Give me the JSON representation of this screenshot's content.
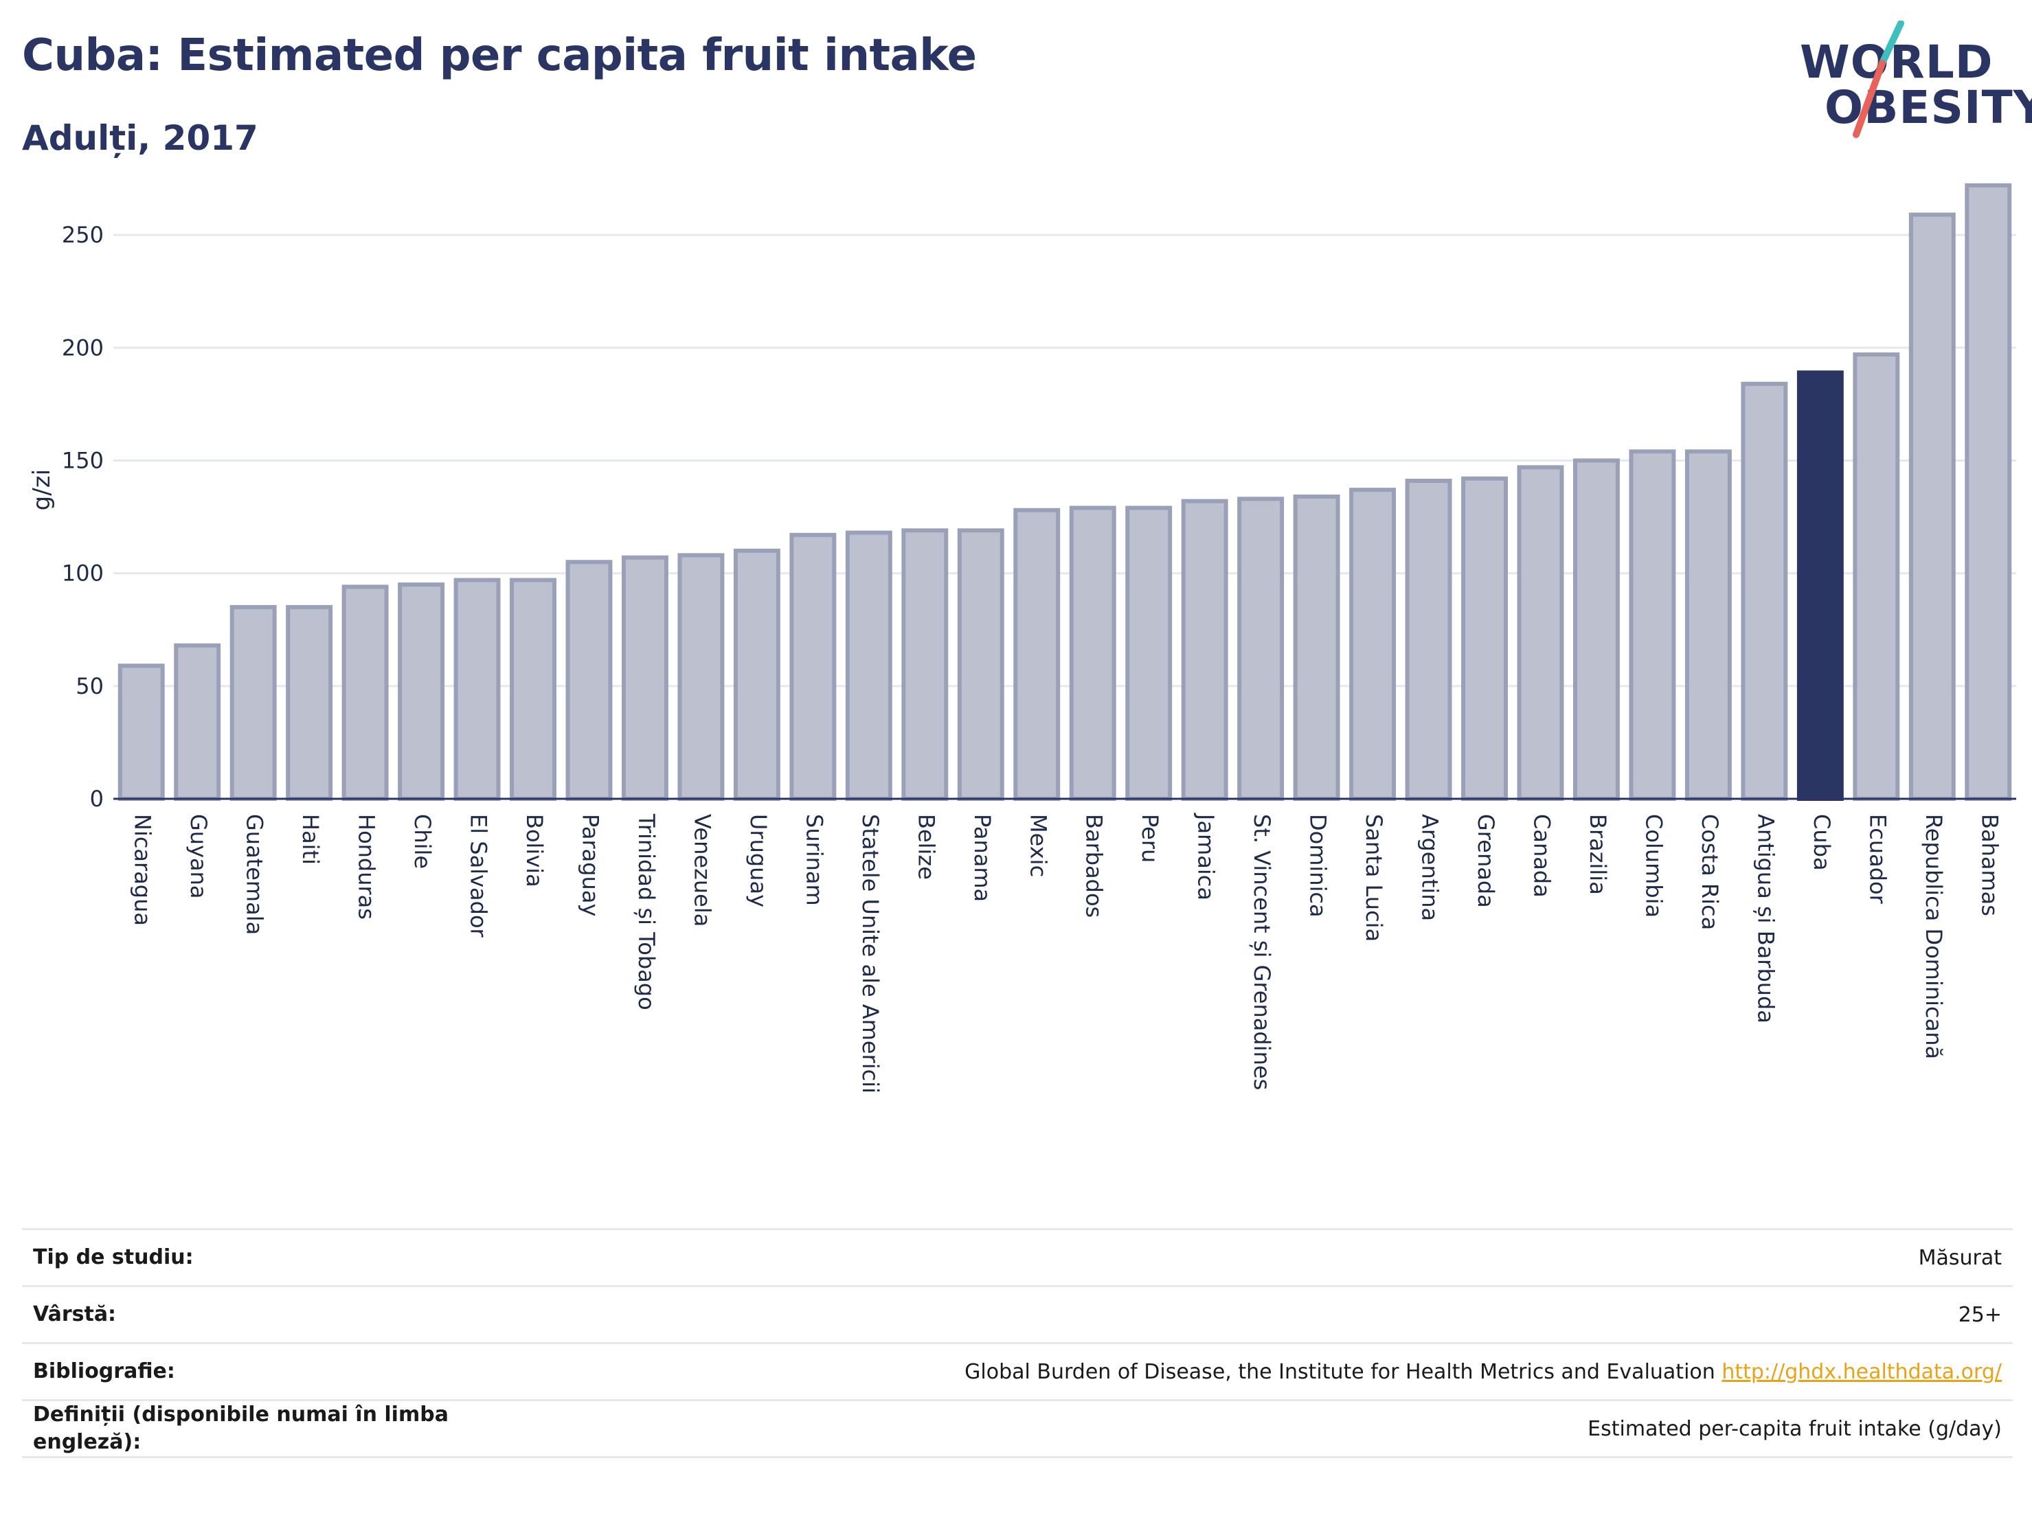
{
  "header": {
    "title": "Cuba: Estimated per capita fruit intake",
    "subtitle": "Adulți, 2017"
  },
  "logo": {
    "line1": "WORLD",
    "line2": "OBESITY",
    "accent_teal": "#3cbfbd",
    "accent_coral": "#e8645a"
  },
  "colors": {
    "bar_fill": "#bcc0cf",
    "bar_stroke": "#9aa0b8",
    "highlight": "#2a3563",
    "grid": "#e6e8ef"
  },
  "chart_data": {
    "type": "bar",
    "title": "Cuba: Estimated per capita fruit intake",
    "subtitle": "Adulți, 2017",
    "xlabel": "",
    "ylabel": "g/zi",
    "ylim": [
      0,
      275
    ],
    "yticks": [
      0,
      50,
      100,
      150,
      200,
      250
    ],
    "grid": true,
    "highlight": "Cuba",
    "categories": [
      "Nicaragua",
      "Guyana",
      "Guatemala",
      "Haiti",
      "Honduras",
      "Chile",
      "El Salvador",
      "Bolivia",
      "Paraguay",
      "Trinidad și Tobago",
      "Venezuela",
      "Uruguay",
      "Surinam",
      "Statele Unite ale Americii",
      "Belize",
      "Panama",
      "Mexic",
      "Barbados",
      "Peru",
      "Jamaica",
      "St. Vincent și Grenadines",
      "Dominica",
      "Santa Lucia",
      "Argentina",
      "Grenada",
      "Canada",
      "Brazilia",
      "Columbia",
      "Costa Rica",
      "Antigua și Barbuda",
      "Cuba",
      "Ecuador",
      "Republica Dominicană",
      "Bahamas"
    ],
    "values": [
      59,
      68,
      85,
      85,
      94,
      95,
      97,
      97,
      105,
      107,
      108,
      110,
      117,
      118,
      119,
      119,
      128,
      129,
      129,
      132,
      133,
      134,
      137,
      141,
      142,
      147,
      150,
      154,
      154,
      184,
      189,
      197,
      259,
      272
    ]
  },
  "meta": [
    {
      "key": "Tip de studiu:",
      "value": "Măsurat"
    },
    {
      "key": "Vârstă:",
      "value": "25+"
    },
    {
      "key": "Bibliografie:",
      "value": "Global Burden of Disease, the Institute for Health Metrics and Evaluation ",
      "link": "http://ghdx.healthdata.org/"
    },
    {
      "key": "Definiții (disponibile numai în limba engleză):",
      "value": "Estimated per-capita fruit intake (g/day)"
    }
  ]
}
